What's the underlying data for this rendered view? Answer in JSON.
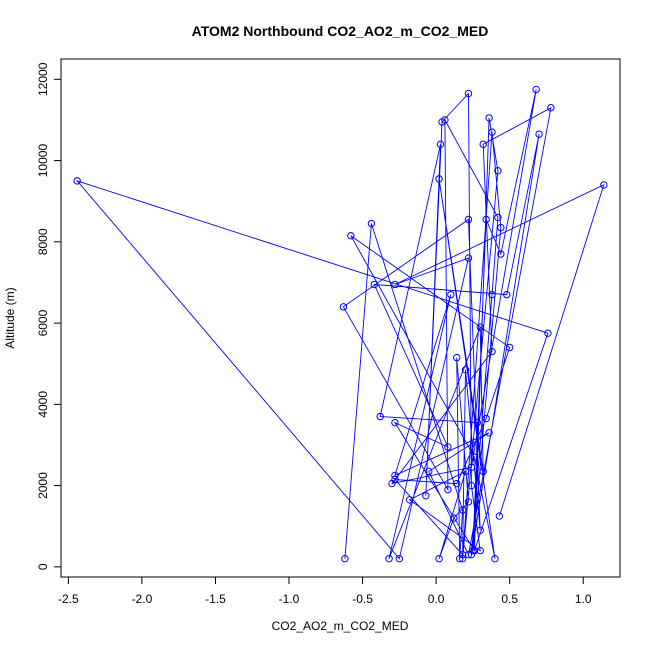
{
  "chart_data": {
    "type": "line",
    "title": "ATOM2 Northbound CO2_AO2_m_CO2_MED",
    "xlabel": "CO2_AO2_m_CO2_MED",
    "ylabel": "Altitude (m)",
    "xlim": [
      -2.55,
      1.25
    ],
    "ylim": [
      -250,
      12500
    ],
    "xticks": [
      -2.5,
      -2.0,
      -1.5,
      -1.0,
      -0.5,
      0.0,
      0.5,
      1.0
    ],
    "xtick_labels": [
      "-2.5",
      "-2.0",
      "-1.5",
      "-1.0",
      "-0.5",
      "0.0",
      "0.5",
      "1.0"
    ],
    "yticks": [
      0,
      2000,
      4000,
      6000,
      8000,
      10000,
      12000
    ],
    "ytick_labels": [
      "0",
      "2000",
      "4000",
      "6000",
      "8000",
      "10000",
      "12000"
    ],
    "grid": false,
    "legend": "none",
    "series_color": "#0000ff",
    "series": [
      {
        "marker": "open-circle",
        "x": [
          -0.62,
          -0.44,
          0.18,
          0.16,
          0.14,
          0.22,
          0.12,
          0.02,
          0.2,
          -0.18,
          0.3,
          0.24,
          0.22,
          0.04,
          -0.07,
          0.03,
          -0.38,
          0.28,
          0.26,
          0.36,
          0.42,
          0.18,
          0.38,
          0.44,
          0.25,
          0.34,
          0.44,
          0.68,
          0.24,
          -0.3,
          0.38,
          0.32,
          0.78,
          0.22,
          -0.05,
          0.36,
          -0.28,
          0.1,
          -0.32,
          0.3,
          0.32,
          0.02,
          0.4,
          0.26,
          -0.58,
          0.5,
          0.34,
          0.14,
          -0.28,
          0.18,
          0.2,
          0.3,
          0.22,
          -0.63,
          0.08,
          0.06,
          0.42,
          0.38,
          0.24,
          0.7,
          0.48,
          -0.42,
          0.08,
          -0.28,
          0.26,
          0.76,
          -2.44,
          -0.25,
          0.22,
          -0.28,
          1.14,
          0.43
        ],
        "y": [
          200,
          8450,
          1400,
          200,
          5150,
          1600,
          1200,
          200,
          2350,
          1650,
          400,
          2000,
          11650,
          10950,
          1750,
          10400,
          3700,
          3550,
          400,
          11050,
          9750,
          200,
          10700,
          8350,
          400,
          8550,
          7700,
          11750,
          2450,
          2050,
          5300,
          10400,
          11300,
          300,
          2350,
          3300,
          2250,
          6700,
          200,
          5900,
          2350,
          9550,
          200,
          2700,
          8150,
          5400,
          3650,
          2050,
          2150,
          300,
          4850,
          900,
          8550,
          6400,
          1900,
          11000,
          8600,
          6700,
          300,
          10650,
          6700,
          6950,
          2950,
          3550,
          400,
          5750,
          9500,
          200,
          7600,
          6950,
          9400,
          1250
        ]
      }
    ]
  }
}
